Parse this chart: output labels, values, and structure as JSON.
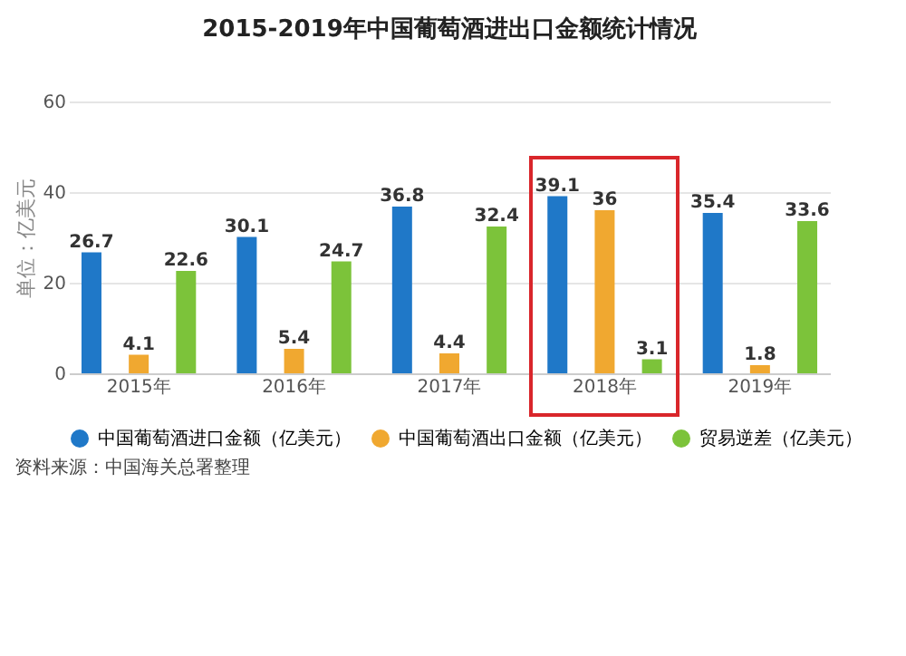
{
  "chart_data": {
    "type": "bar",
    "title": "2015-2019年中国葡萄酒进出口金额统计情况",
    "ylabel": "单位：亿美元",
    "categories": [
      "2015年",
      "2016年",
      "2017年",
      "2018年",
      "2019年"
    ],
    "series": [
      {
        "name": "中国葡萄酒进口金额（亿美元）",
        "color": "#1f78c8",
        "values": [
          26.7,
          30.1,
          36.8,
          39.1,
          35.4
        ]
      },
      {
        "name": "中国葡萄酒出口金额（亿美元）",
        "color": "#f0a830",
        "values": [
          4.1,
          5.4,
          4.4,
          36,
          1.8
        ]
      },
      {
        "name": "贸易逆差（亿美元）",
        "color": "#7cc33a",
        "values": [
          22.6,
          24.7,
          32.4,
          3.1,
          33.6
        ]
      }
    ],
    "ylim": [
      0,
      60
    ],
    "yticks": [
      0,
      20,
      40,
      60
    ],
    "grid": "y",
    "legend": "bottom",
    "data_labels": true,
    "marker": "circle",
    "annotations": [
      "资料来源：中国海关总署整理"
    ]
  }
}
